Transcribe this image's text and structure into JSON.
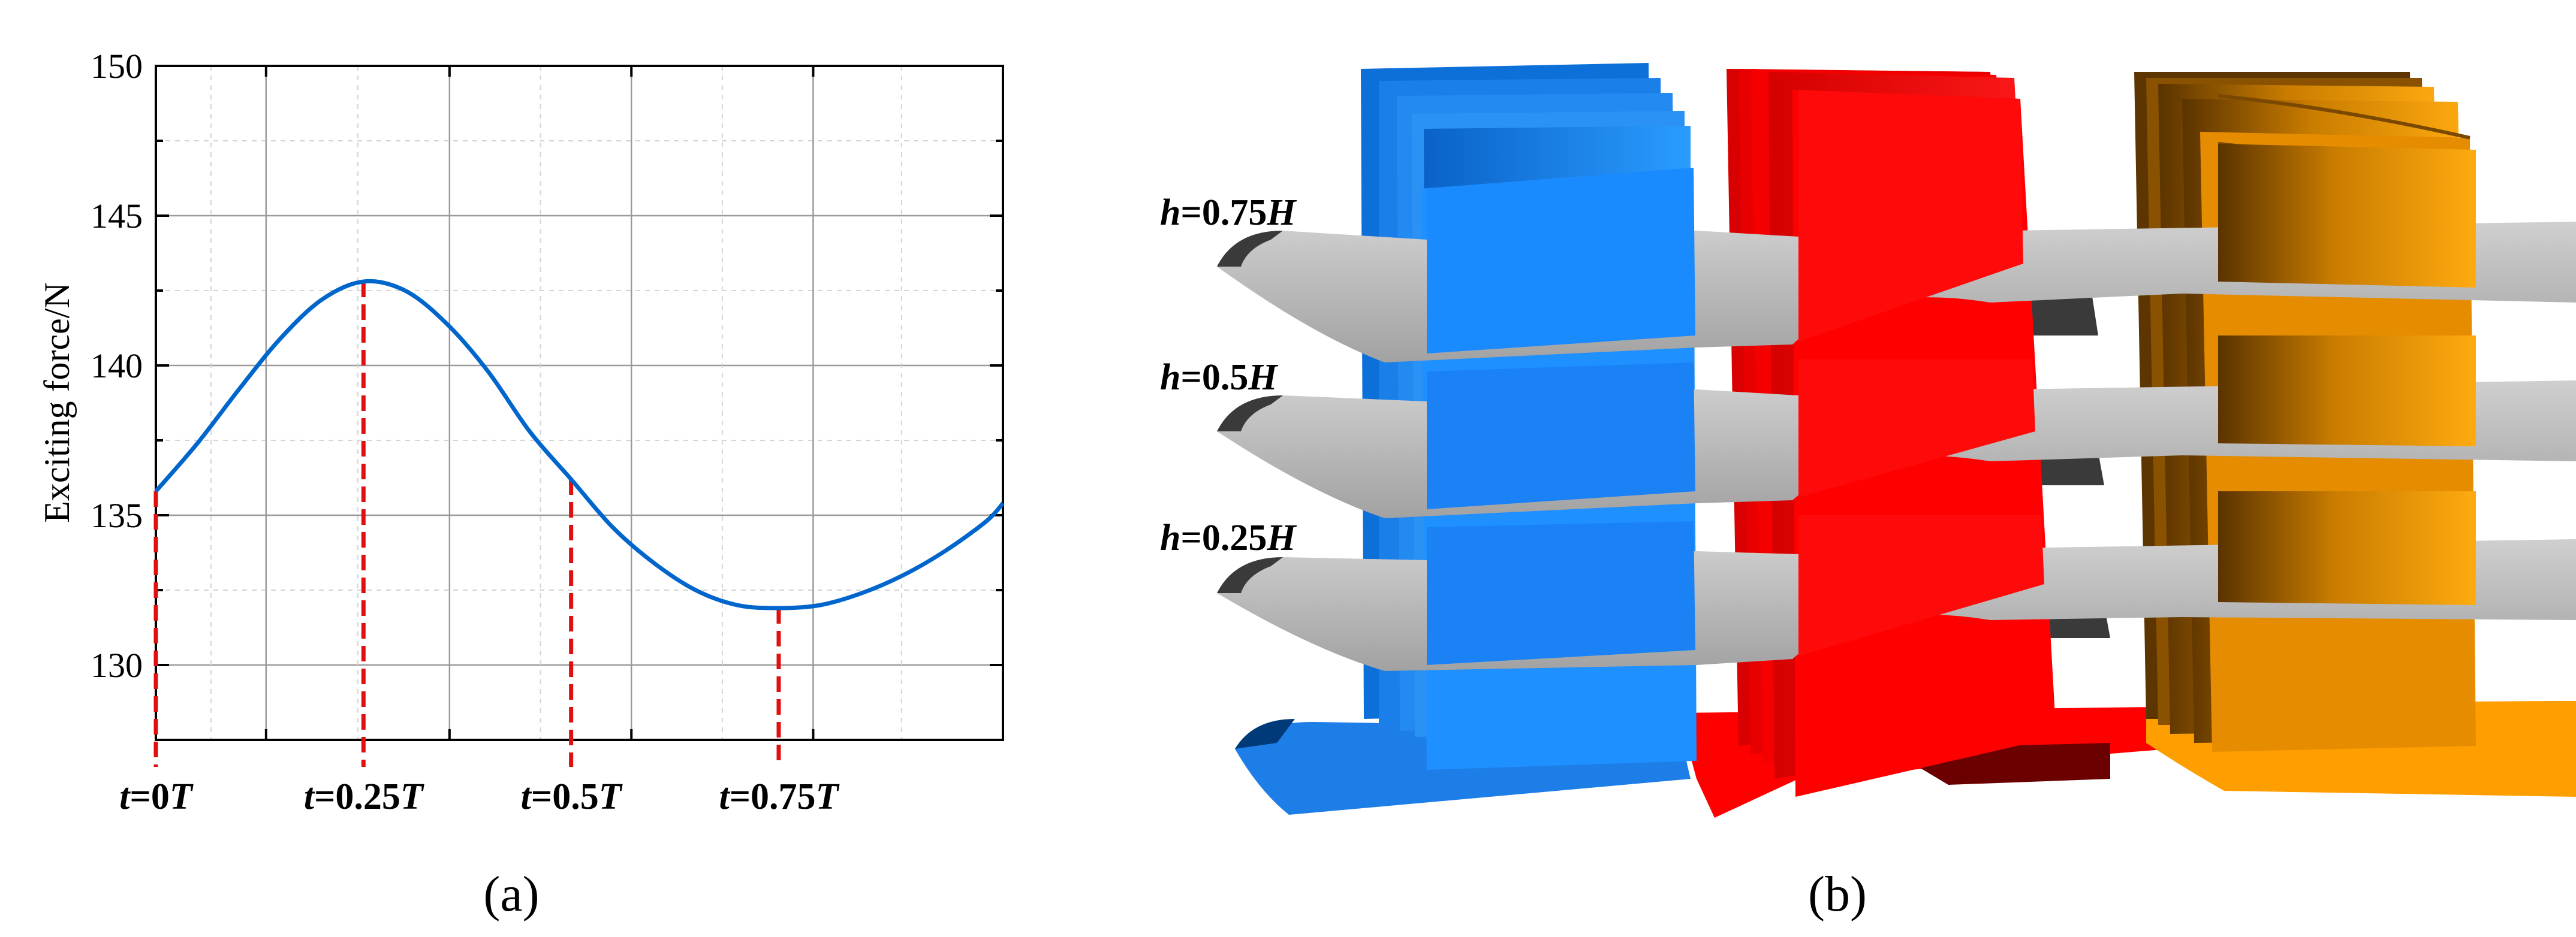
{
  "panel_a": {
    "caption": "(a)",
    "chart_data": {
      "type": "line",
      "title": "",
      "xlabel": "",
      "ylabel": "Exciting force/N",
      "xlim": [
        0,
        1.02
      ],
      "ylim": [
        127.5,
        150
      ],
      "yticks": [
        130,
        135,
        140,
        145,
        150
      ],
      "xgrid": [
        0,
        0.1327,
        0.3536,
        0.5726,
        0.7915
      ],
      "grid": true,
      "series": [
        {
          "name": "",
          "color": "#0066cc",
          "x": [
            0,
            0.05,
            0.1,
            0.15,
            0.2,
            0.25,
            0.3,
            0.35,
            0.4,
            0.45,
            0.5,
            0.55,
            0.6,
            0.65,
            0.7,
            0.75,
            0.8,
            0.85,
            0.9,
            0.95,
            1.0,
            1.02
          ],
          "y": [
            135.8,
            137.4,
            139.2,
            140.9,
            142.2,
            142.8,
            142.5,
            141.4,
            139.8,
            137.8,
            136.2,
            134.6,
            133.4,
            132.5,
            132.0,
            131.9,
            132.0,
            132.4,
            133.0,
            133.8,
            134.8,
            135.4
          ]
        }
      ],
      "markers": [
        {
          "t": 0,
          "value": 135.8,
          "label_prefix": "t",
          "label_suffix": "=0",
          "label_T": "T"
        },
        {
          "t": 0.25,
          "value": 142.8,
          "label_prefix": "t",
          "label_suffix": "=0.25",
          "label_T": "T"
        },
        {
          "t": 0.5,
          "value": 136.2,
          "label_prefix": "t",
          "label_suffix": "=0.5",
          "label_T": "T"
        },
        {
          "t": 0.75,
          "value": 131.9,
          "label_prefix": "t",
          "label_suffix": "=0.75",
          "label_T": "T"
        }
      ],
      "marker_color": "#e01010"
    }
  },
  "panel_b": {
    "caption": "(b)",
    "labels": [
      {
        "var": "h",
        "text": "=0.75",
        "unit": "H"
      },
      {
        "var": "h",
        "text": "=0.5",
        "unit": "H"
      },
      {
        "var": "h",
        "text": "=0.25",
        "unit": "H"
      }
    ],
    "colors": {
      "blade_blue": "#1e90ff",
      "blade_red": "#ff0000",
      "blade_orange": "#ffa200",
      "section_gray": "#b4b4b4"
    }
  }
}
